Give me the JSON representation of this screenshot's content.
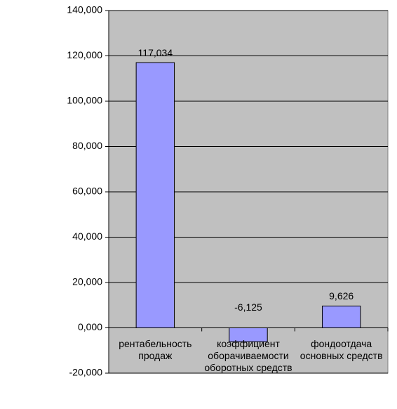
{
  "chart_data": {
    "type": "bar",
    "categories": [
      "рентабельность продаж",
      "коэффициент оборачиваемости оборотных средств",
      "фондоотдача основных средств"
    ],
    "values": [
      117.034,
      -6.125,
      9.626
    ],
    "value_labels": [
      "117,034",
      "-6,125",
      "9,626"
    ],
    "color": "#9999ff",
    "ylim": [
      -20,
      140
    ],
    "yticks": [
      {
        "value": -20,
        "label": "-20,000"
      },
      {
        "value": 0,
        "label": "0,000"
      },
      {
        "value": 20,
        "label": "20,000"
      },
      {
        "value": 40,
        "label": "40,000"
      },
      {
        "value": 60,
        "label": "60,000"
      },
      {
        "value": 80,
        "label": "80,000"
      },
      {
        "value": 100,
        "label": "100,000"
      },
      {
        "value": 120,
        "label": "120,000"
      },
      {
        "value": 140,
        "label": "140,000"
      }
    ],
    "grid": true
  }
}
